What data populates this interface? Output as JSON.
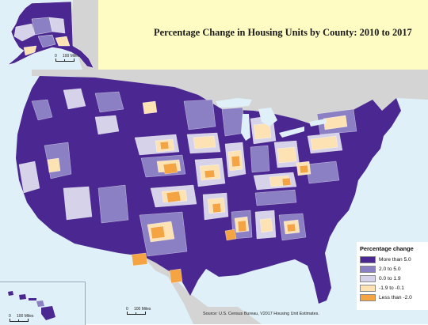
{
  "title": "Percentage Change in Housing Units by County: 2010 to 2017",
  "legend": {
    "title": "Percentage change",
    "items": [
      {
        "label": "More than 5.0",
        "color": "#4b2791"
      },
      {
        "label": "2.0 to 5.0",
        "color": "#8c80c4"
      },
      {
        "label": "0.0 to 1.9",
        "color": "#d6d2ea"
      },
      {
        "label": "-1.9 to -0.1",
        "color": "#fde3b4"
      },
      {
        "label": "Less than -2.0",
        "color": "#f4a443"
      }
    ]
  },
  "insets": {
    "alaska": {
      "scale_zero": "0",
      "scale_label": "100 Miles"
    },
    "hawaii": {
      "scale_zero": "0",
      "scale_label": "100 Miles"
    }
  },
  "main_scale": {
    "zero": "0",
    "label": "100 Miles"
  },
  "source": "Source: U.S. Census Bureau, V2017 Housing Unit Estimates.",
  "colors": {
    "water": "#dff0f8",
    "neighbor_land": "#d4d4d4",
    "title_background": "#fffcc3",
    "boundary": "#ffffff"
  }
}
